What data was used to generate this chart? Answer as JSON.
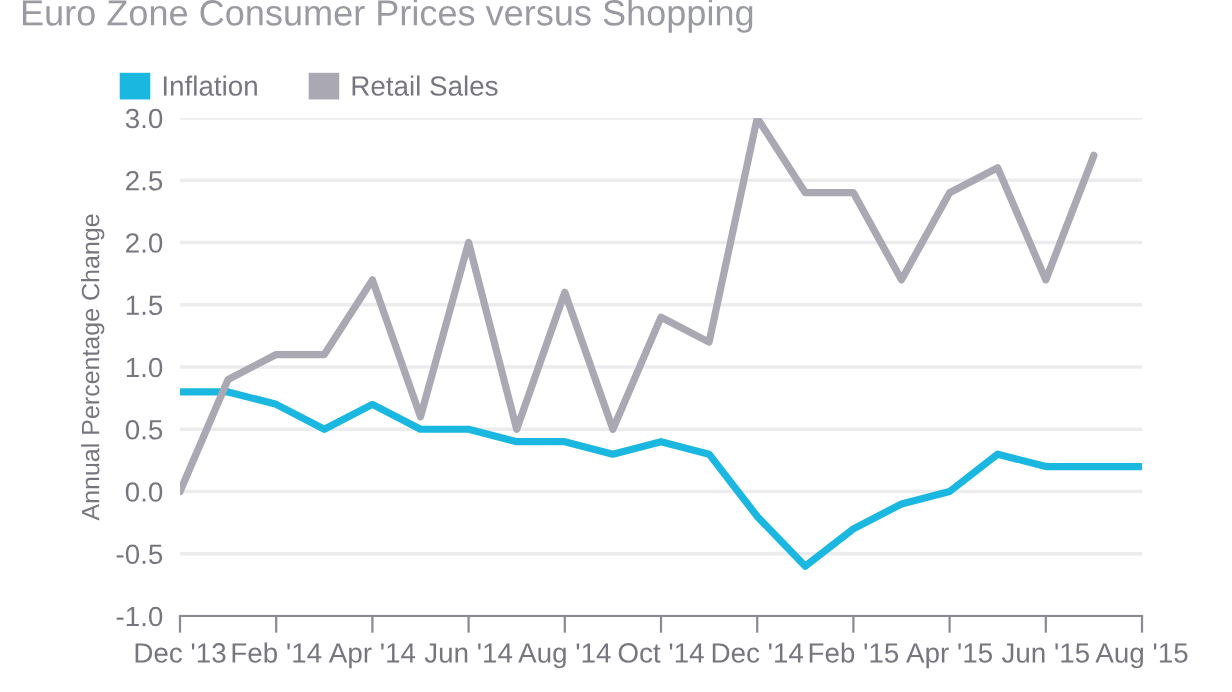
{
  "chart_data": {
    "type": "line",
    "title": "Euro Zone Consumer Prices versus Shopping",
    "ylabel": "Annual Percentage Change",
    "categories": [
      "Dec '13",
      null,
      "Feb '14",
      null,
      "Apr '14",
      null,
      "Jun '14",
      null,
      "Aug '14",
      null,
      "Oct '14",
      null,
      "Dec '14",
      null,
      "Feb '15",
      null,
      "Apr '15",
      null,
      "Jun '15",
      null,
      "Aug '15"
    ],
    "series": [
      {
        "name": "Inflation",
        "color": "#1ab8e0",
        "values": [
          0.8,
          0.8,
          0.7,
          0.5,
          0.7,
          0.5,
          0.5,
          0.4,
          0.4,
          0.3,
          0.4,
          0.3,
          -0.2,
          -0.6,
          -0.3,
          -0.1,
          0.0,
          0.3,
          0.2,
          0.2,
          0.2
        ]
      },
      {
        "name": "Retail Sales",
        "color": "#a9a8b3",
        "values": [
          0.0,
          0.9,
          1.1,
          1.1,
          1.7,
          0.6,
          2.0,
          0.5,
          1.6,
          0.5,
          1.4,
          1.2,
          3.0,
          2.4,
          2.4,
          1.7,
          2.4,
          2.6,
          1.7,
          2.7,
          null
        ]
      }
    ],
    "ylim": [
      -1.0,
      3.0
    ],
    "yticks": [
      {
        "value": -1,
        "label": "-1.0"
      },
      {
        "value": -0.5,
        "label": "-0.5"
      },
      {
        "value": 0,
        "label": "0.0"
      },
      {
        "value": 0.5,
        "label": "0.5"
      },
      {
        "value": 1,
        "label": "1.0"
      },
      {
        "value": 1.5,
        "label": "1.5"
      },
      {
        "value": 2,
        "label": "2.0"
      },
      {
        "value": 2.5,
        "label": "2.5"
      },
      {
        "value": 3,
        "label": "3.0"
      }
    ],
    "grid": "y",
    "legend": "top left"
  }
}
